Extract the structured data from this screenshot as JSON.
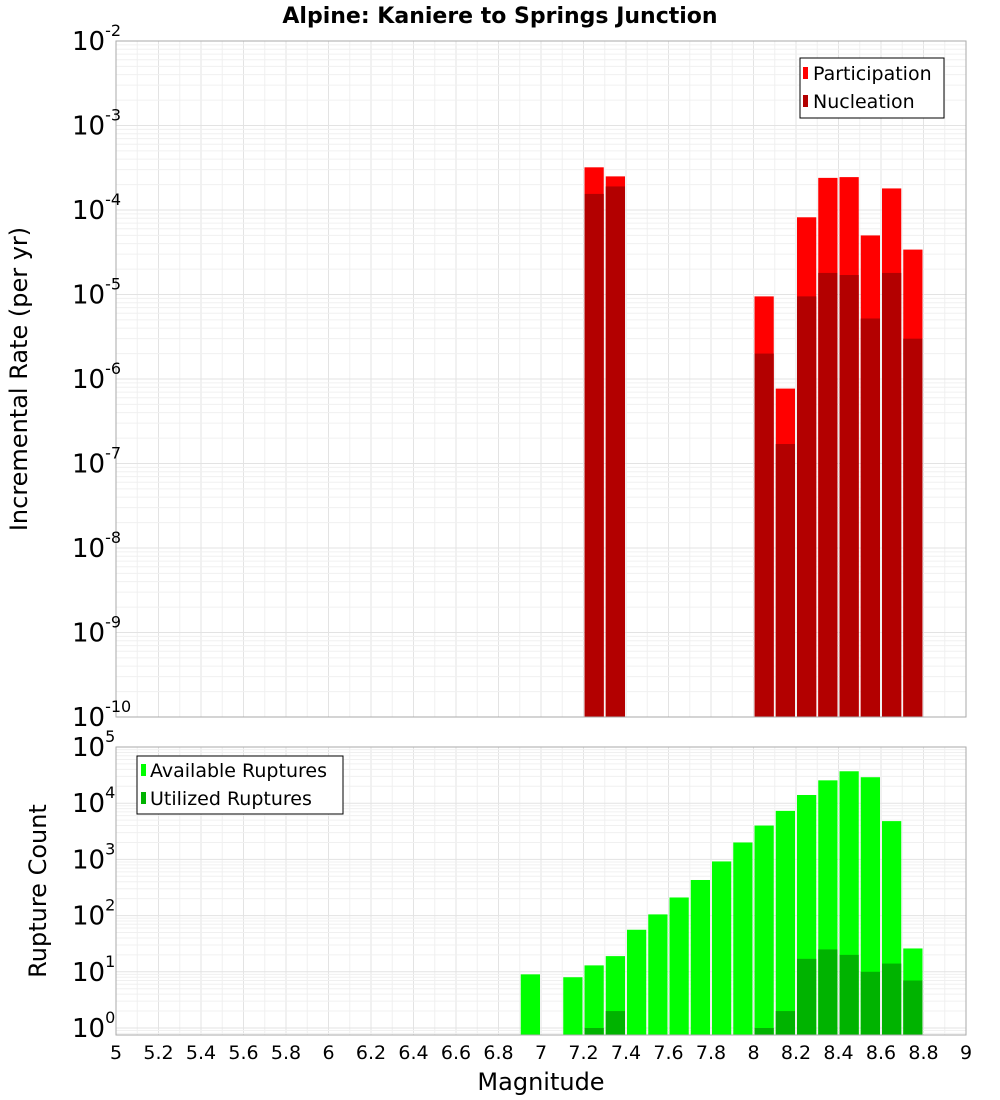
{
  "chart_data": [
    {
      "type": "bar",
      "title": "Alpine: Kaniere to Springs Junction",
      "xlabel": "",
      "ylabel": "Incremental Rate (per yr)",
      "yscale": "log",
      "ylim": [
        1e-10,
        0.01
      ],
      "xlim": [
        5,
        9
      ],
      "grid": true,
      "legend_position": "top-right",
      "bin_width": 0.1,
      "x": [
        7.25,
        7.35,
        8.05,
        8.15,
        8.25,
        8.35,
        8.45,
        8.55,
        8.65,
        8.75
      ],
      "series": [
        {
          "name": "Participation",
          "color": "#ff0000",
          "values": [
            0.00032,
            0.00025,
            9.5e-06,
            7.7e-07,
            8.2e-05,
            0.00024,
            0.000245,
            5e-05,
            0.00018,
            3.4e-05
          ]
        },
        {
          "name": "Nucleation",
          "color": "#b30000",
          "values": [
            0.000155,
            0.00019,
            2e-06,
            1.7e-07,
            9.5e-06,
            1.8e-05,
            1.7e-05,
            5.2e-06,
            1.8e-05,
            3e-06
          ]
        }
      ]
    },
    {
      "type": "bar",
      "title": "",
      "xlabel": "Magnitude",
      "ylabel": "Rupture Count",
      "yscale": "log",
      "ylim": [
        0.75,
        100000
      ],
      "xlim": [
        5,
        9
      ],
      "grid": true,
      "legend_position": "top-left",
      "bin_width": 0.1,
      "x": [
        6.95,
        7.15,
        7.25,
        7.35,
        7.45,
        7.55,
        7.65,
        7.75,
        7.85,
        7.95,
        8.05,
        8.15,
        8.25,
        8.35,
        8.45,
        8.55,
        8.65,
        8.75
      ],
      "series": [
        {
          "name": "Available Ruptures",
          "color": "#00ff00",
          "values": [
            9,
            8,
            13,
            19,
            56,
            105,
            210,
            430,
            920,
            2000,
            4000,
            7300,
            14000,
            25500,
            37000,
            29000,
            4800,
            26
          ]
        },
        {
          "name": "Utilized Ruptures",
          "color": "#00b300",
          "values": [
            0,
            0,
            1,
            2,
            0,
            0,
            0,
            0,
            0,
            0,
            1,
            2,
            17,
            25,
            20,
            10,
            14,
            7
          ]
        }
      ]
    }
  ],
  "x_ticks": [
    "5",
    "5.2",
    "5.4",
    "5.6",
    "5.8",
    "6",
    "6.2",
    "6.4",
    "6.6",
    "6.8",
    "7",
    "7.2",
    "7.4",
    "7.6",
    "7.8",
    "8",
    "8.2",
    "8.4",
    "8.6",
    "8.8",
    "9"
  ],
  "top_y_ticks": [
    {
      "base": "10",
      "exp": "-2"
    },
    {
      "base": "10",
      "exp": "-3"
    },
    {
      "base": "10",
      "exp": "-4"
    },
    {
      "base": "10",
      "exp": "-5"
    },
    {
      "base": "10",
      "exp": "-6"
    },
    {
      "base": "10",
      "exp": "-7"
    },
    {
      "base": "10",
      "exp": "-8"
    },
    {
      "base": "10",
      "exp": "-9"
    },
    {
      "base": "10",
      "exp": "-10"
    }
  ],
  "bottom_y_ticks": [
    {
      "base": "10",
      "exp": "5"
    },
    {
      "base": "10",
      "exp": "4"
    },
    {
      "base": "10",
      "exp": "3"
    },
    {
      "base": "10",
      "exp": "2"
    },
    {
      "base": "10",
      "exp": "1"
    },
    {
      "base": "10",
      "exp": "0"
    }
  ]
}
